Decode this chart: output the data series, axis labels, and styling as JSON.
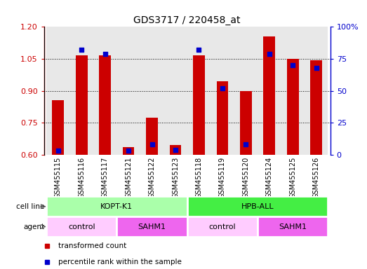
{
  "title": "GDS3717 / 220458_at",
  "samples": [
    "GSM455115",
    "GSM455116",
    "GSM455117",
    "GSM455121",
    "GSM455122",
    "GSM455123",
    "GSM455118",
    "GSM455119",
    "GSM455120",
    "GSM455124",
    "GSM455125",
    "GSM455126"
  ],
  "transformed_counts": [
    0.855,
    1.065,
    1.065,
    0.635,
    0.775,
    0.645,
    1.065,
    0.945,
    0.9,
    1.155,
    1.05,
    1.045
  ],
  "percentile_ranks": [
    3,
    82,
    79,
    3,
    8,
    4,
    82,
    52,
    8,
    79,
    70,
    68
  ],
  "ylim_left": [
    0.6,
    1.2
  ],
  "ylim_right": [
    0,
    100
  ],
  "yticks_left": [
    0.6,
    0.75,
    0.9,
    1.05,
    1.2
  ],
  "yticks_right": [
    0,
    25,
    50,
    75,
    100
  ],
  "bar_color": "#cc0000",
  "dot_color": "#0000cc",
  "cell_lines": [
    {
      "label": "KOPT-K1",
      "start": 0,
      "end": 6,
      "color": "#aaffaa"
    },
    {
      "label": "HPB-ALL",
      "start": 6,
      "end": 12,
      "color": "#44ee44"
    }
  ],
  "agents": [
    {
      "label": "control",
      "start": 0,
      "end": 3,
      "color": "#ffccff"
    },
    {
      "label": "SAHM1",
      "start": 3,
      "end": 6,
      "color": "#ee66ee"
    },
    {
      "label": "control",
      "start": 6,
      "end": 9,
      "color": "#ffccff"
    },
    {
      "label": "SAHM1",
      "start": 9,
      "end": 12,
      "color": "#ee66ee"
    }
  ],
  "legend_items": [
    {
      "label": "transformed count",
      "color": "#cc0000"
    },
    {
      "label": "percentile rank within the sample",
      "color": "#0000cc"
    }
  ],
  "left_axis_color": "#cc0000",
  "right_axis_color": "#0000cc",
  "bar_width": 0.5,
  "title_fontsize": 10
}
